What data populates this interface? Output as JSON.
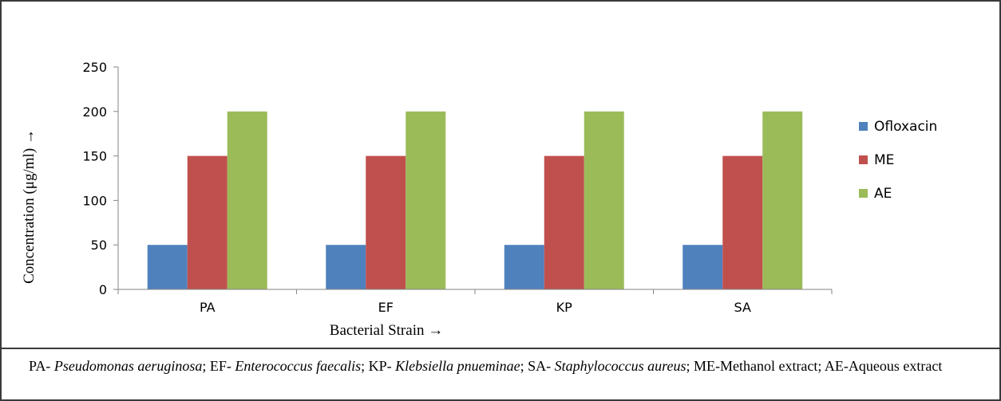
{
  "chart_data": {
    "type": "bar",
    "categories": [
      "PA",
      "EF",
      "KP",
      "SA"
    ],
    "series": [
      {
        "name": "Ofloxacin",
        "values": [
          50,
          50,
          50,
          50
        ],
        "color": "#4f81bd"
      },
      {
        "name": "ME",
        "values": [
          150,
          150,
          150,
          150
        ],
        "color": "#c0504d"
      },
      {
        "name": "AE",
        "values": [
          200,
          200,
          200,
          200
        ],
        "color": "#9bbb59"
      }
    ],
    "xlabel": "Bacterial Strain →",
    "ylabel": "Concentration (μg/ml) →",
    "ylim": [
      0,
      250
    ],
    "yticks": [
      0,
      50,
      100,
      150,
      200,
      250
    ],
    "grid": false,
    "legend": "right"
  },
  "caption": {
    "pa_abbr": "PA- ",
    "pa_name": "Pseudomonas aeruginosa",
    "ef_abbr": "; EF- ",
    "ef_name": "Enterococcus faecalis",
    "kp_abbr": "; KP- ",
    "kp_name": "Klebsiella pnueminae",
    "sa_abbr": "; SA- ",
    "sa_name": "Staphylococcus aureus",
    "extracts": "; ME-Methanol extract; AE-Aqueous extract"
  }
}
